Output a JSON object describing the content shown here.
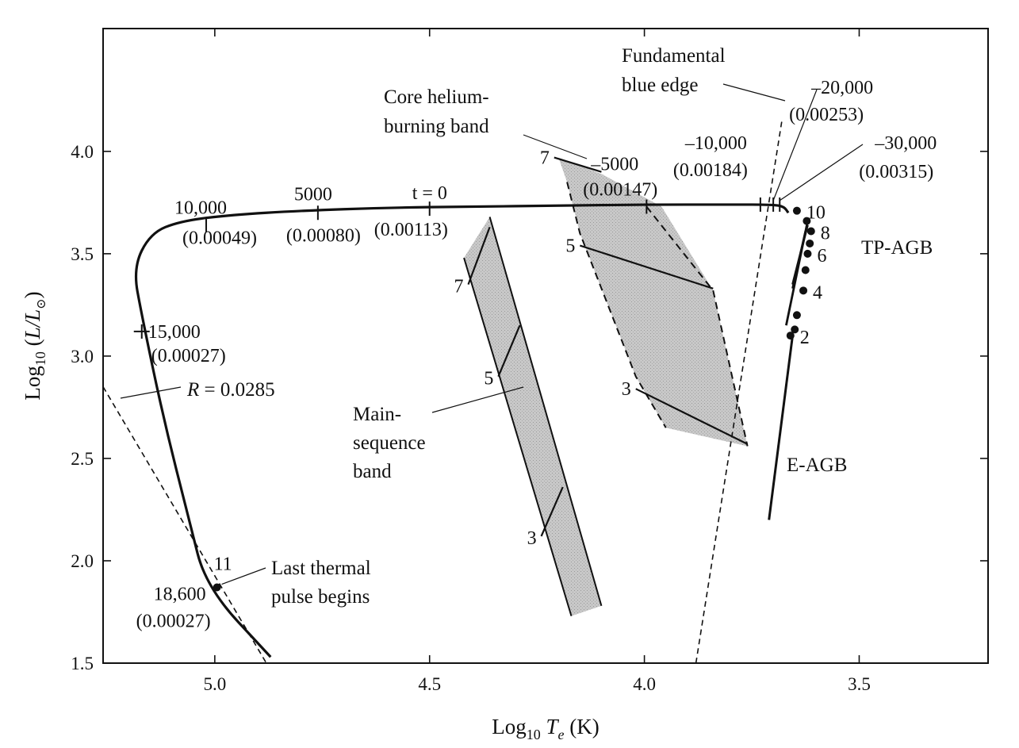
{
  "chart_data": {
    "type": "line",
    "xlabel": {
      "base": "Log",
      "sub": "10",
      "var": "T",
      "varsub": "e",
      "unit": "(K)"
    },
    "ylabel": {
      "base": "Log",
      "sub": "10",
      "rest": "(L/L",
      "sym": "⊙",
      "close": ")"
    },
    "x_axis": {
      "range": [
        5.26,
        3.2
      ],
      "reversed": true,
      "ticks": [
        5.0,
        4.5,
        4.0,
        3.5
      ],
      "tick_labels": [
        "5.0",
        "4.5",
        "4.0",
        "3.5"
      ]
    },
    "y_axis": {
      "range": [
        1.5,
        4.6
      ],
      "ticks": [
        1.5,
        2.0,
        2.5,
        3.0,
        3.5,
        4.0
      ],
      "tick_labels": [
        "1.5",
        "2.0",
        "2.5",
        "3.0",
        "3.5",
        "4.0"
      ]
    },
    "post_agb_track": {
      "points": [
        [
          5.02,
          1.87
        ],
        [
          5.06,
          2.2
        ],
        [
          5.12,
          2.7
        ],
        [
          5.17,
          3.2
        ],
        [
          5.19,
          3.43
        ],
        [
          5.15,
          3.6
        ],
        [
          5.08,
          3.66
        ],
        [
          4.96,
          3.69
        ],
        [
          4.8,
          3.71
        ],
        [
          4.6,
          3.725
        ],
        [
          4.4,
          3.73
        ],
        [
          4.2,
          3.735
        ],
        [
          4.0,
          3.74
        ],
        [
          3.8,
          3.74
        ],
        [
          3.7,
          3.74
        ],
        [
          3.675,
          3.73
        ],
        [
          3.665,
          3.7
        ]
      ],
      "end_point": [
        4.87,
        1.53
      ],
      "time_marks": [
        {
          "x": 5.17,
          "y": 3.12,
          "label": "15,000",
          "label2": "(0.00027)"
        },
        {
          "x": 5.02,
          "y": 3.64,
          "label": "10,000",
          "label2": "(0.00049)"
        },
        {
          "x": 4.76,
          "y": 3.7,
          "label": "5000",
          "label2": "(0.00080)"
        },
        {
          "x": 4.5,
          "y": 3.72,
          "label": "t = 0",
          "label2": "(0.00113)"
        },
        {
          "x": 3.995,
          "y": 3.73,
          "label": "–5000",
          "label2": "(0.00147)"
        },
        {
          "x": 3.73,
          "y": 3.74,
          "label": "–10,000",
          "label2": "(0.00184)"
        },
        {
          "x": 3.7,
          "y": 3.74,
          "label": "–20,000",
          "label2": "(0.00253)"
        },
        {
          "x": 3.685,
          "y": 3.74,
          "label": "–30,000",
          "label2": "(0.00315)"
        }
      ]
    },
    "last_thermal_pulse": {
      "x": 4.995,
      "y": 1.87,
      "labels": [
        "11",
        "18,600",
        "(0.00027)"
      ],
      "annotation": [
        "Last thermal",
        "pulse begins"
      ]
    },
    "radius_line": {
      "label": "R = 0.0285",
      "label_italic": "R",
      "label_rest": " = 0.0285",
      "points": [
        [
          5.26,
          2.85
        ],
        [
          4.88,
          1.5
        ]
      ]
    },
    "blue_edge": {
      "label": [
        "Fundamental",
        "blue edge"
      ],
      "points": [
        [
          3.88,
          1.5
        ],
        [
          3.68,
          4.15
        ]
      ]
    },
    "main_sequence_band": {
      "label": [
        "Main-",
        "sequence",
        "band"
      ],
      "polygon": [
        [
          4.42,
          3.48
        ],
        [
          4.36,
          3.68
        ],
        [
          4.1,
          1.78
        ],
        [
          4.17,
          1.73
        ]
      ],
      "mass_lines": [
        {
          "mass": "7",
          "from": [
            4.41,
            3.35
          ],
          "to": [
            4.36,
            3.63
          ]
        },
        {
          "mass": "5",
          "from": [
            4.34,
            2.9
          ],
          "to": [
            4.29,
            3.15
          ]
        },
        {
          "mass": "3",
          "from": [
            4.24,
            2.12
          ],
          "to": [
            4.19,
            2.36
          ]
        }
      ]
    },
    "core_helium_band": {
      "label": [
        "Core helium-",
        "burning band"
      ],
      "polygon": [
        [
          4.2,
          3.97
        ],
        [
          4.1,
          3.89
        ],
        [
          3.96,
          3.73
        ],
        [
          3.84,
          3.32
        ],
        [
          3.76,
          2.56
        ],
        [
          3.95,
          2.65
        ],
        [
          4.02,
          2.9
        ],
        [
          4.15,
          3.6
        ],
        [
          4.18,
          3.85
        ]
      ],
      "mass_lines": [
        {
          "mass": "7",
          "from": [
            4.21,
            3.97
          ],
          "to": [
            4.1,
            3.9
          ]
        },
        {
          "mass": "5",
          "from": [
            4.15,
            3.54
          ],
          "to": [
            3.84,
            3.33
          ]
        },
        {
          "mass": "3",
          "from": [
            4.02,
            2.84
          ],
          "to": [
            3.76,
            2.57
          ]
        }
      ]
    },
    "e_agb": {
      "label": "E-AGB",
      "points": [
        [
          3.71,
          2.2
        ],
        [
          3.655,
          3.1
        ]
      ]
    },
    "tp_agb": {
      "label": "TP-AGB",
      "segments": [
        [
          [
            3.67,
            3.15
          ],
          [
            3.62,
            3.66
          ]
        ],
        [
          [
            3.655,
            3.33
          ],
          [
            3.625,
            3.61
          ]
        ],
        [
          [
            3.655,
            3.35
          ],
          [
            3.62,
            3.64
          ]
        ]
      ],
      "pulses": [
        {
          "x": 3.66,
          "y": 3.1,
          "label": "2"
        },
        {
          "x": 3.65,
          "y": 3.13
        },
        {
          "x": 3.645,
          "y": 3.2
        },
        {
          "x": 3.63,
          "y": 3.32,
          "label": "4"
        },
        {
          "x": 3.625,
          "y": 3.42
        },
        {
          "x": 3.62,
          "y": 3.5,
          "label": "6"
        },
        {
          "x": 3.615,
          "y": 3.55
        },
        {
          "x": 3.612,
          "y": 3.61,
          "label": "8"
        },
        {
          "x": 3.622,
          "y": 3.66
        },
        {
          "x": 3.645,
          "y": 3.71,
          "label": "10"
        }
      ]
    }
  }
}
